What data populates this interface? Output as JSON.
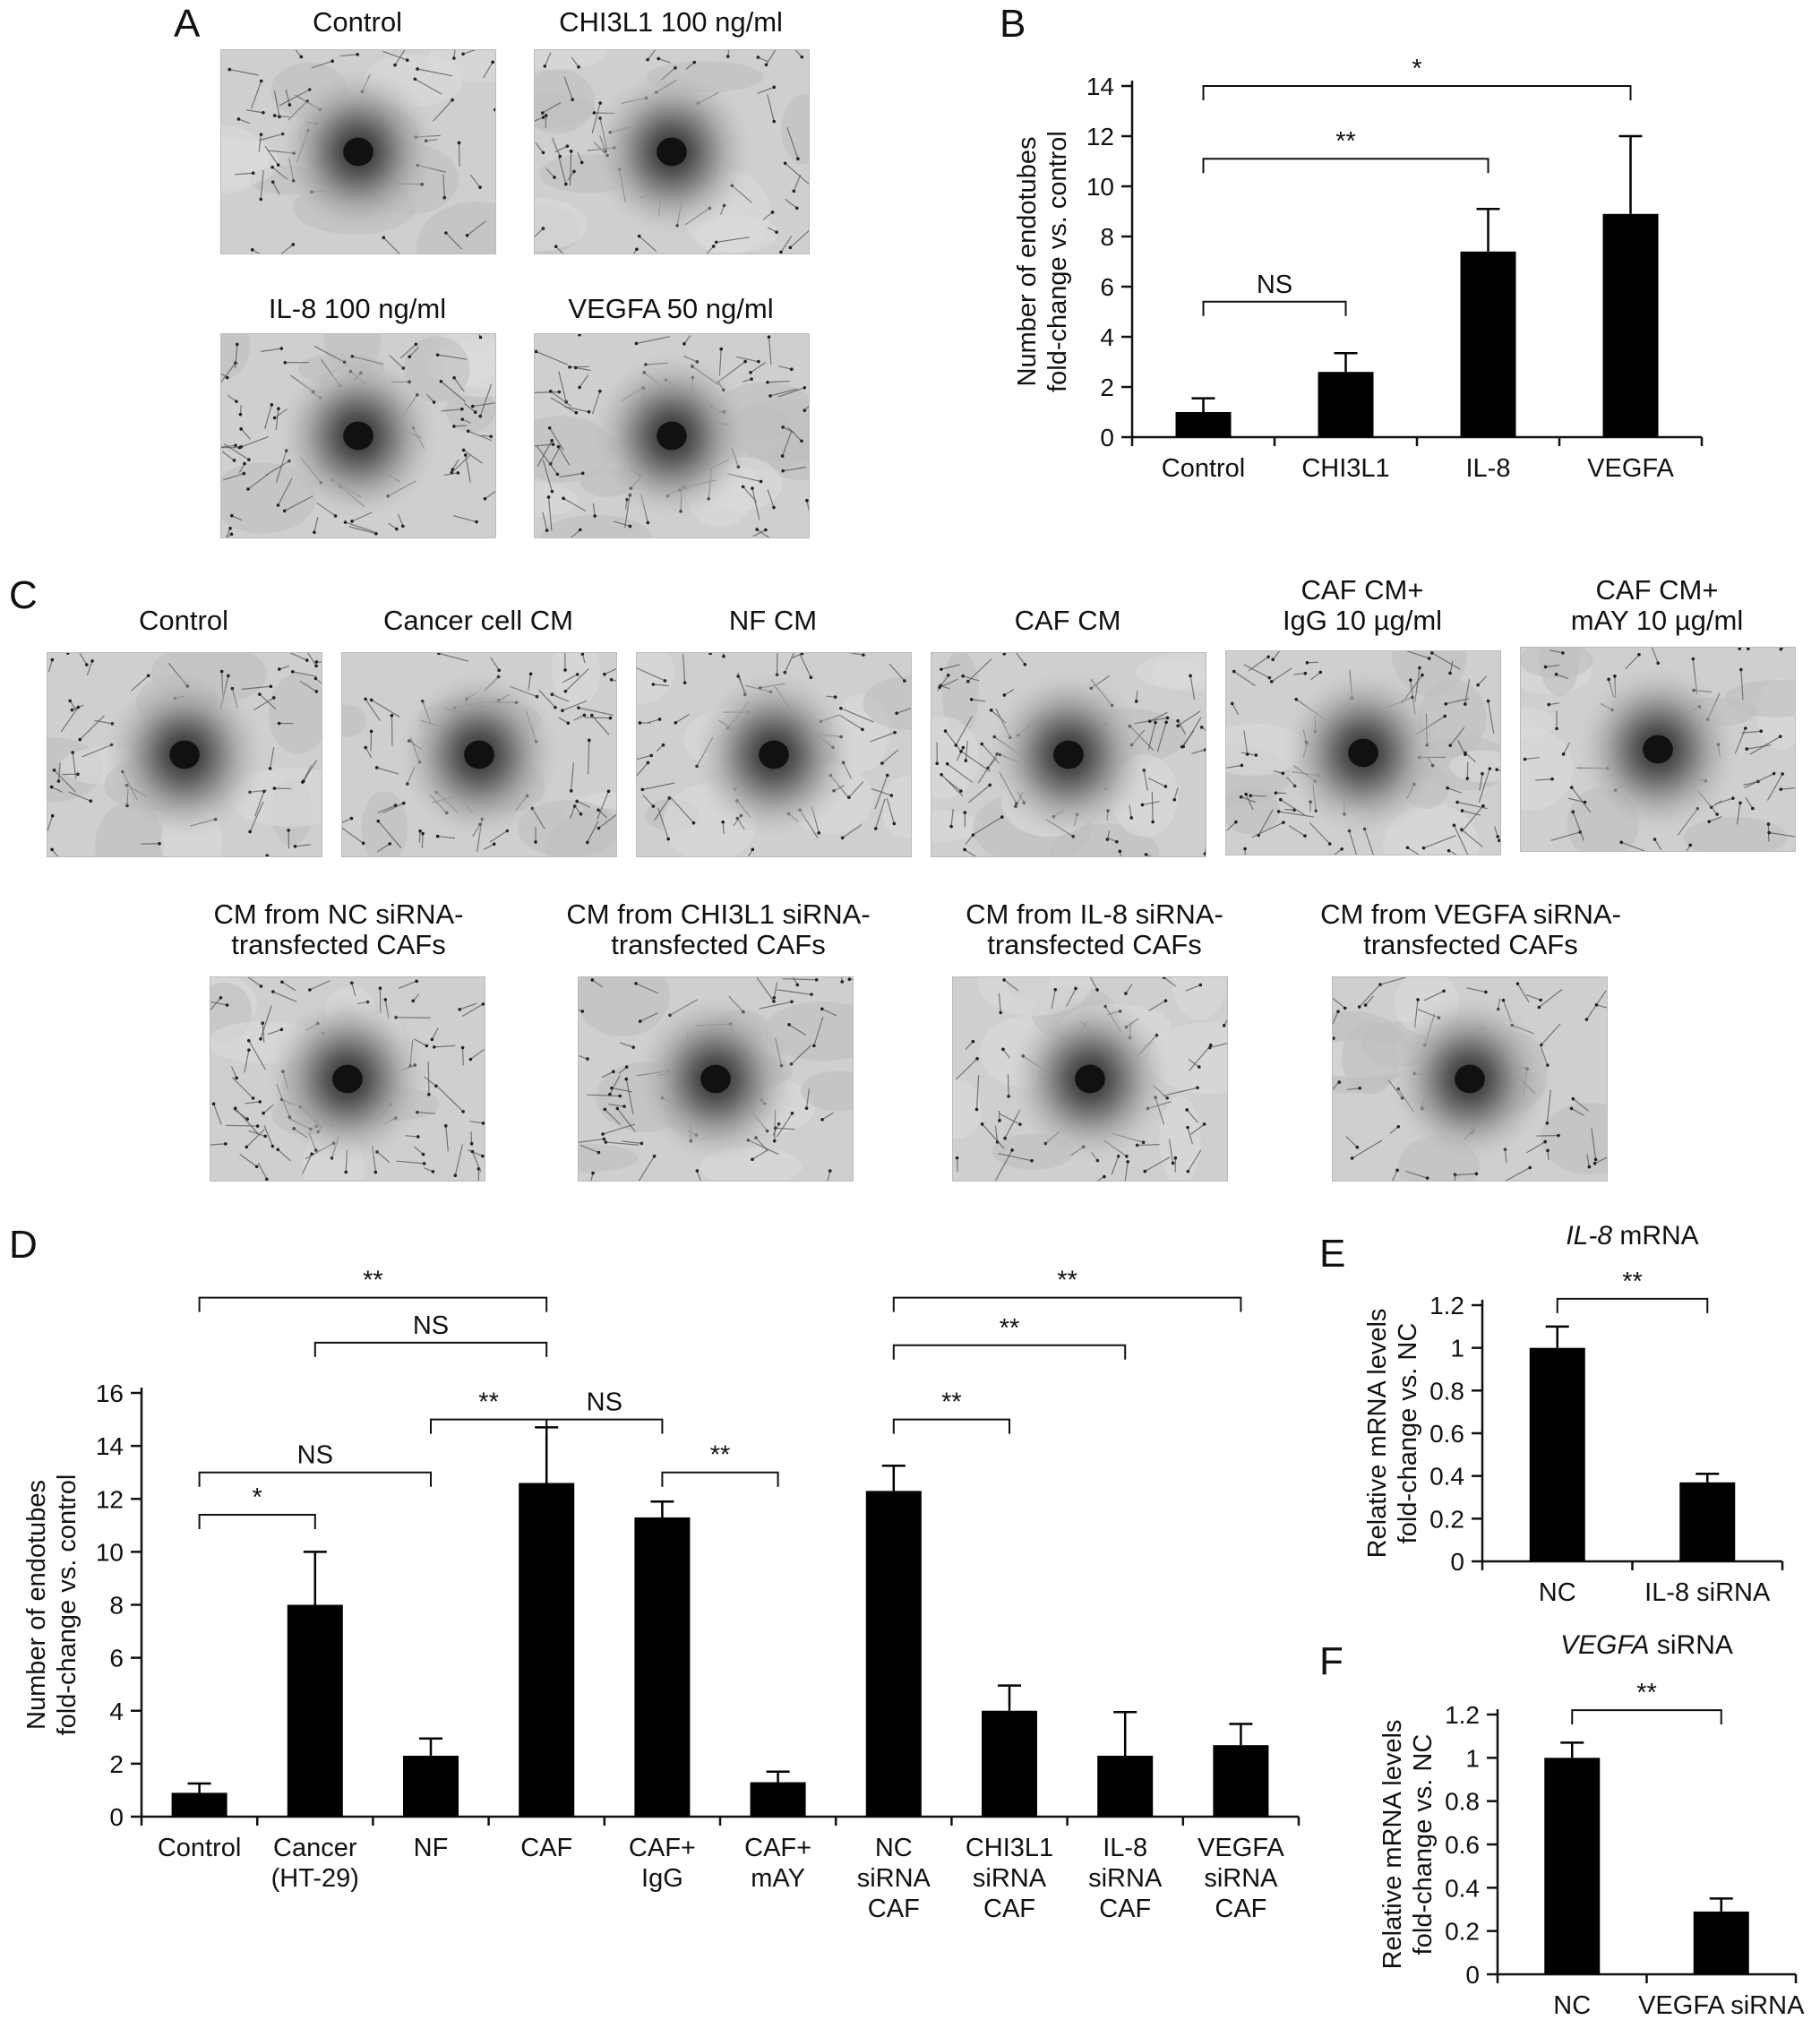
{
  "panel_labels": {
    "A": "A",
    "B": "B",
    "C": "C",
    "D": "D",
    "E": "E",
    "F": "F"
  },
  "panel_a": {
    "images": [
      {
        "caption": "Control",
        "density": 0.55
      },
      {
        "caption": "CHI3L1 100 ng/ml",
        "density": 0.7
      },
      {
        "caption": "IL-8 100 ng/ml",
        "density": 0.9
      },
      {
        "caption": "VEGFA 50 ng/ml",
        "density": 0.95
      }
    ]
  },
  "panel_c": {
    "images": [
      {
        "caption": "Control",
        "density": 0.6
      },
      {
        "caption": "Cancer cell CM",
        "density": 0.8
      },
      {
        "caption": "NF CM",
        "density": 0.7
      },
      {
        "caption": "CAF CM",
        "density": 0.9
      },
      {
        "caption": "CAF CM+\nIgG 10 µg/ml",
        "density": 0.9
      },
      {
        "caption": "CAF CM+\nmAY 10 µg/ml",
        "density": 0.6
      },
      {
        "caption": "CM from NC siRNA-\ntransfected CAFs",
        "density": 0.95
      },
      {
        "caption": "CM from CHI3L1 siRNA-\ntransfected CAFs",
        "density": 0.7
      },
      {
        "caption": "CM from IL-8 siRNA-\ntransfected CAFs",
        "density": 0.65
      },
      {
        "caption": "CM from VEGFA siRNA-\ntransfected CAFs",
        "density": 0.6
      }
    ]
  },
  "chart_data": [
    {
      "id": "B",
      "type": "bar",
      "ylabel": [
        "Number of endotubes",
        "fold-change vs. control"
      ],
      "categories": [
        "Control",
        "CHI3L1",
        "IL-8",
        "VEGFA"
      ],
      "values": [
        1.0,
        2.6,
        7.4,
        8.9
      ],
      "errors": [
        0.55,
        0.75,
        1.7,
        3.1
      ],
      "ylim": [
        0,
        14
      ],
      "yticks": [
        0,
        2,
        4,
        6,
        8,
        10,
        12,
        14
      ],
      "annotations": [
        {
          "from": 0,
          "to": 1,
          "y": 5.4,
          "label": "NS"
        },
        {
          "from": 0,
          "to": 2,
          "y": 11.1,
          "label": "**"
        },
        {
          "from": 0,
          "to": 3,
          "y": 14.0,
          "label": "*"
        }
      ]
    },
    {
      "id": "D",
      "type": "bar",
      "ylabel": [
        "Number of endotubes",
        "fold-change vs. control"
      ],
      "categories": [
        "Control",
        "Cancer\n(HT-29)",
        "NF",
        "CAF",
        "CAF+\nIgG",
        "CAF+\nmAY",
        "NC\nsiRNA\nCAF",
        "CHI3L1\nsiRNA\nCAF",
        "IL-8\nsiRNA\nCAF",
        "VEGFA\nsiRNA\nCAF"
      ],
      "values": [
        0.9,
        8.0,
        2.3,
        12.6,
        11.3,
        1.3,
        12.3,
        4.0,
        2.3,
        2.7
      ],
      "errors": [
        0.35,
        2.0,
        0.65,
        2.1,
        0.6,
        0.4,
        0.95,
        0.95,
        1.65,
        0.8
      ],
      "ylim": [
        0,
        16
      ],
      "yticks": [
        0,
        2,
        4,
        6,
        8,
        10,
        12,
        14,
        16
      ],
      "annotations": [
        {
          "from": 0,
          "to": 1,
          "y": 11.4,
          "label": "*"
        },
        {
          "from": 0,
          "to": 2,
          "y": 13.0,
          "label": "NS"
        },
        {
          "from": 2,
          "to": 3,
          "y": 15.0,
          "label": "**"
        },
        {
          "from": 3,
          "to": 4,
          "y": 15.0,
          "label": "NS"
        },
        {
          "from": 4,
          "to": 5,
          "y": 13.0,
          "label": "**"
        },
        {
          "from": 1,
          "to": 3,
          "y": 17.9,
          "label": "NS"
        },
        {
          "from": 0,
          "to": 3,
          "y": 19.6,
          "label": "**"
        },
        {
          "from": 6,
          "to": 7,
          "y": 15.0,
          "label": "**"
        },
        {
          "from": 6,
          "to": 8,
          "y": 17.8,
          "label": "**"
        },
        {
          "from": 6,
          "to": 9,
          "y": 19.6,
          "label": "**"
        }
      ]
    },
    {
      "id": "E",
      "type": "bar",
      "title": "IL-8 mRNA",
      "title_italic": "IL-8",
      "title_rest": " mRNA",
      "ylabel": [
        "Relative mRNA levels",
        "fold-change vs. NC"
      ],
      "categories": [
        "NC",
        "IL-8 siRNA"
      ],
      "values": [
        1.0,
        0.37
      ],
      "errors": [
        0.1,
        0.04
      ],
      "ylim": [
        0,
        1.2
      ],
      "yticks": [
        0,
        0.2,
        0.4,
        0.6,
        0.8,
        1,
        1.2
      ],
      "annotations": [
        {
          "from": 0,
          "to": 1,
          "y": 1.23,
          "label": "**"
        }
      ]
    },
    {
      "id": "F",
      "type": "bar",
      "title": "VEGFA siRNA",
      "title_italic": "VEGFA",
      "title_rest": " siRNA",
      "ylabel": [
        "Relative mRNA levels",
        "fold-change vs. NC"
      ],
      "categories": [
        "NC",
        "VEGFA siRNA"
      ],
      "values": [
        1.0,
        0.29
      ],
      "errors": [
        0.07,
        0.06
      ],
      "ylim": [
        0,
        1.2
      ],
      "yticks": [
        0,
        0.2,
        0.4,
        0.6,
        0.8,
        1,
        1.2
      ],
      "annotations": [
        {
          "from": 0,
          "to": 1,
          "y": 1.22,
          "label": "**"
        }
      ]
    }
  ]
}
